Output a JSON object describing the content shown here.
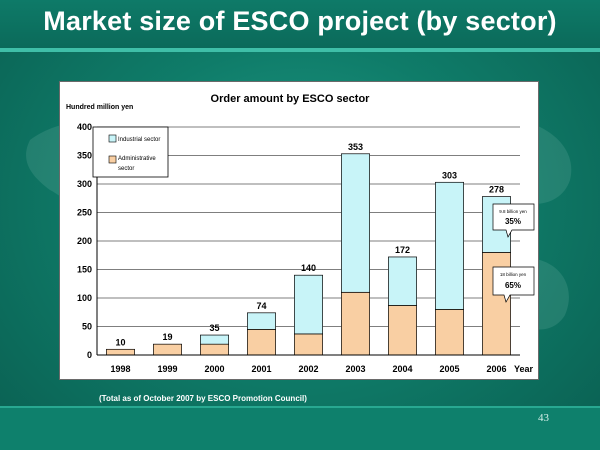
{
  "slide": {
    "title": "Market size of ESCO project (by sector)",
    "footnote": "(Total as of October 2007 by ESCO Promotion Council)",
    "page_number": "43"
  },
  "chart_data": {
    "type": "bar",
    "stacked": true,
    "title": "Order amount by ESCO sector",
    "ylabel": "Hundred million yen",
    "xlabel": "Year",
    "categories": [
      "1998",
      "1999",
      "2000",
      "2001",
      "2002",
      "2003",
      "2004",
      "2005",
      "2006"
    ],
    "totals": [
      10,
      19,
      35,
      74,
      140,
      353,
      172,
      303,
      278
    ],
    "total_labels": [
      "10",
      "19",
      "35",
      "74",
      "140",
      "353",
      "172",
      "303",
      "278"
    ],
    "ylim": [
      0,
      400
    ],
    "yticks": [
      0,
      50,
      100,
      150,
      200,
      250,
      300,
      350,
      400
    ],
    "ytick_labels": [
      "0",
      "50",
      "100",
      "150",
      "200",
      "250",
      "300",
      "350",
      "400"
    ],
    "grid": true,
    "legend_position": "top-left",
    "series": [
      {
        "name": "Administrative sector",
        "legend_label_line1": "Administrative",
        "legend_label_line2": "sector",
        "color": "#f9cfa3",
        "values": [
          10,
          19,
          19,
          45,
          37,
          110,
          87,
          80,
          180
        ]
      },
      {
        "name": "Industrial sector",
        "legend_label_line1": "Industrial sector",
        "color": "#c8f4f8",
        "values": [
          0,
          0,
          16,
          29,
          103,
          243,
          85,
          223,
          98
        ]
      }
    ],
    "callouts": [
      {
        "amount": "9.8 billion yen",
        "share": "35%",
        "series": "Industrial sector",
        "category": "2006"
      },
      {
        "amount": "18 billion yen",
        "share": "65%",
        "series": "Administrative sector",
        "category": "2006"
      }
    ]
  }
}
